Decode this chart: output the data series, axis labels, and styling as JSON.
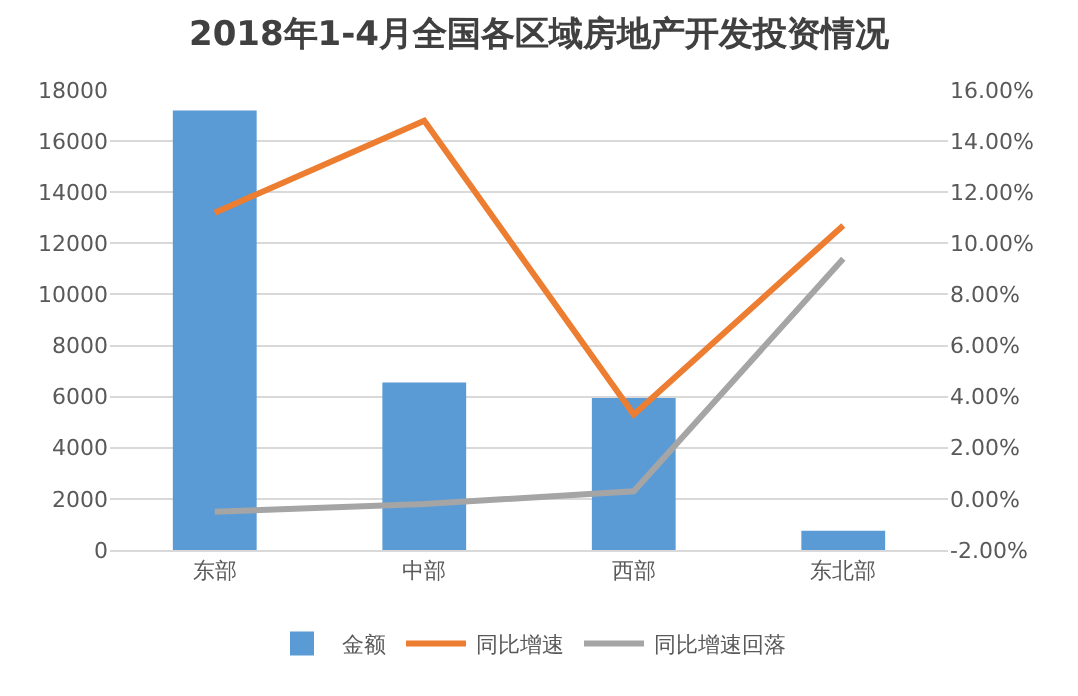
{
  "chart_data": {
    "type": "bar",
    "title": "2018年1-4月全国各区域房地产开发投资情况",
    "categories": [
      "东部",
      "中部",
      "西部",
      "东北部"
    ],
    "series": [
      {
        "name": "金额",
        "color": "#5b9bd5",
        "values": [
          17200,
          6550,
          5950,
          750
        ]
      },
      {
        "name": "同比增速",
        "type": "line",
        "axis": "y2",
        "color": "#ed7d31",
        "values": [
          11.2,
          14.8,
          3.3,
          10.7
        ]
      },
      {
        "name": "同比增速回落",
        "type": "line",
        "axis": "y2",
        "color": "#a5a5a5",
        "values": [
          -0.5,
          -0.2,
          0.3,
          9.4
        ]
      }
    ],
    "ylim": [
      0,
      18000
    ],
    "yticks": [
      0,
      2000,
      4000,
      6000,
      8000,
      10000,
      12000,
      14000,
      16000,
      18000
    ],
    "y2lim": [
      -2,
      16
    ],
    "y2ticks": [
      {
        "value": -2,
        "label": "-2.00%"
      },
      {
        "value": 0,
        "label": "0.00%"
      },
      {
        "value": 2,
        "label": "2.00%"
      },
      {
        "value": 4,
        "label": "4.00%"
      },
      {
        "value": 6,
        "label": "6.00%"
      },
      {
        "value": 8,
        "label": "8.00%"
      },
      {
        "value": 10,
        "label": "10.00%"
      },
      {
        "value": 12,
        "label": "12.00%"
      },
      {
        "value": 14,
        "label": "14.00%"
      },
      {
        "value": 16,
        "label": "16.00%"
      }
    ],
    "grid": "y",
    "legend": "bottom",
    "marker": "none"
  }
}
